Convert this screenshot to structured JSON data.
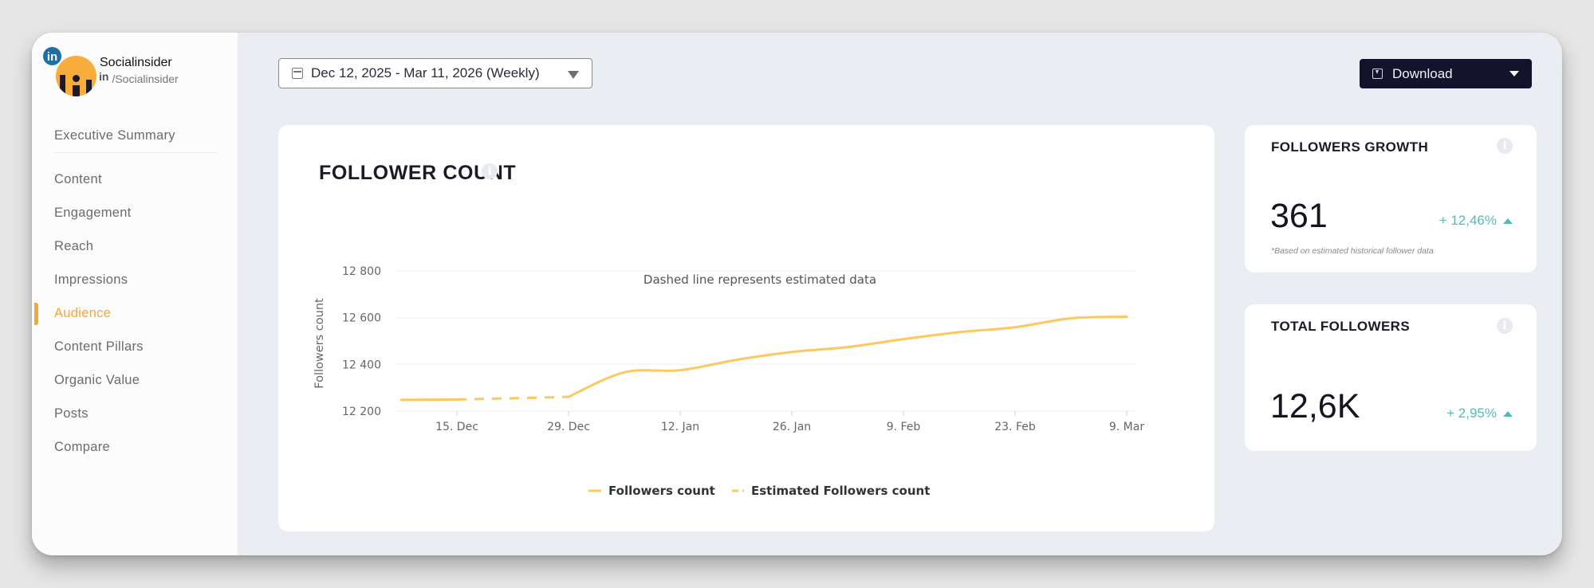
{
  "profile": {
    "name": "Socialinsider",
    "network_badge": "in",
    "handle_prefix": "in",
    "handle": "/Socialinsider",
    "avatar_color": "#f8ad3b",
    "badge_color": "#1f6fa5"
  },
  "sidebar": {
    "items": [
      {
        "label": "Executive Summary",
        "active": false
      },
      {
        "label": "Content",
        "active": false
      },
      {
        "label": "Engagement",
        "active": false
      },
      {
        "label": "Reach",
        "active": false
      },
      {
        "label": "Impressions",
        "active": false
      },
      {
        "label": "Audience",
        "active": true
      },
      {
        "label": "Content Pillars",
        "active": false
      },
      {
        "label": "Organic Value",
        "active": false
      },
      {
        "label": "Posts",
        "active": false
      },
      {
        "label": "Compare",
        "active": false
      }
    ],
    "active_color": "#f5a833"
  },
  "toolbar": {
    "date_range": "Dec 12, 2025 - Mar 11, 2026 (Weekly)",
    "date_icon": "calendar-icon",
    "download_label": "Download",
    "download_icon": "download-icon"
  },
  "follower_chart": {
    "title": "FOLLOWER COUNT",
    "info_icon": "i"
  },
  "chart_data": {
    "type": "line",
    "title": "Dashed line represents estimated data",
    "xlabel": "",
    "ylabel": "Followers count",
    "ylim": [
      12200,
      12800
    ],
    "yticks": [
      12200,
      12400,
      12600,
      12800
    ],
    "ytick_labels": [
      "12 200",
      "12 400",
      "12 600",
      "12 800"
    ],
    "xtick_labels": [
      "15. Dec",
      "29. Dec",
      "12. Jan",
      "26. Jan",
      "9. Feb",
      "23. Feb",
      "9. Mar"
    ],
    "grid": true,
    "legend_position": "bottom",
    "color": "#fcc85f",
    "x": [
      "8. Dec",
      "15. Dec",
      "22. Dec",
      "29. Dec",
      "5. Jan",
      "12. Jan",
      "19. Jan",
      "26. Jan",
      "2. Feb",
      "9. Feb",
      "16. Feb",
      "23. Feb",
      "2. Mar",
      "9. Mar"
    ],
    "series": [
      {
        "name": "Followers count",
        "style": "solid",
        "values": [
          12248,
          12250,
          null,
          12261,
          12366,
          12375,
          12419,
          12453,
          12474,
          12508,
          12538,
          12559,
          12597,
          12604
        ]
      },
      {
        "name": "Estimated Followers count",
        "style": "dashed",
        "values": [
          null,
          12250,
          12255,
          12261,
          null,
          null,
          null,
          null,
          null,
          null,
          null,
          null,
          null,
          null
        ]
      }
    ]
  },
  "stats": {
    "growth": {
      "title": "FOLLOWERS GROWTH",
      "value": "361",
      "change": "+ 12,46%",
      "direction": "up",
      "note": "*Based on estimated historical follower data"
    },
    "total": {
      "title": "TOTAL FOLLOWERS",
      "value": "12,6K",
      "change": "+ 2,95%",
      "direction": "up"
    },
    "positive_color": "#4fbdb8"
  }
}
